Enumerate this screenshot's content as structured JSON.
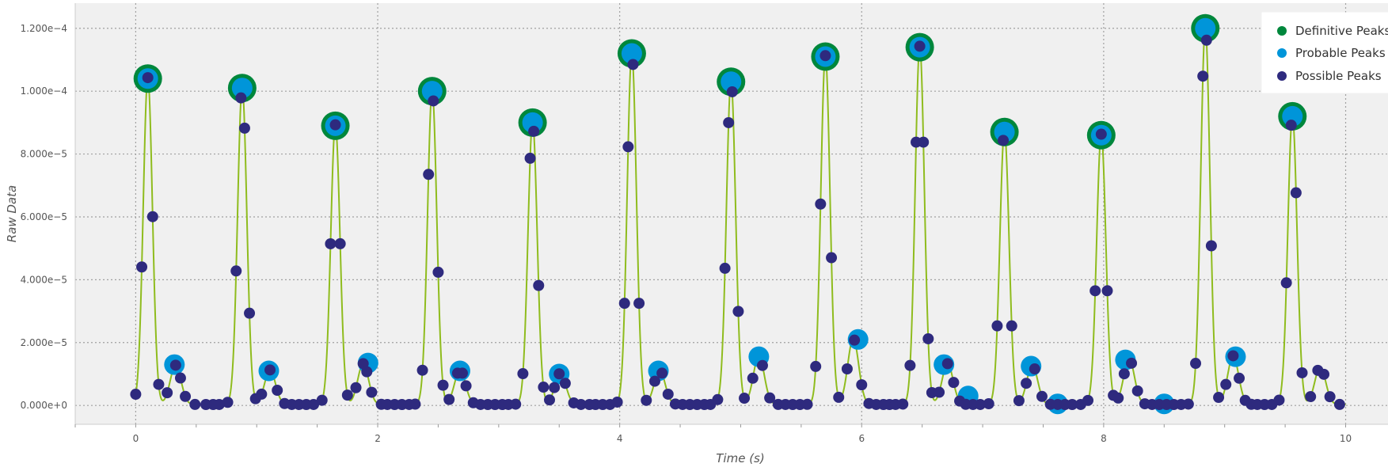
{
  "chart_data": {
    "type": "line",
    "xlabel": "Time (s)",
    "ylabel": "Raw Data",
    "xlim": [
      -0.5,
      10.35
    ],
    "ylim": [
      -6e-06,
      0.000128
    ],
    "x_ticks": [
      0,
      2,
      4,
      6,
      8,
      10
    ],
    "x_tick_labels": [
      "0",
      "2",
      "4",
      "6",
      "8",
      "10"
    ],
    "y_ticks": [
      0,
      2e-05,
      4e-05,
      6e-05,
      8e-05,
      0.0001,
      0.00012
    ],
    "y_tick_labels": [
      "0.000e+0",
      "2.000e−5",
      "4.000e−5",
      "6.000e−5",
      "8.000e−5",
      "1.000e−4",
      "1.200e−4"
    ],
    "grid": true,
    "legend_position": "top-right",
    "colors": {
      "signal": "#8fbc1e",
      "definitive": "#00873c",
      "probable": "#0095d9",
      "possible": "#2e2a7e",
      "plot_background": "#f0f0f0",
      "grid": "#a0a0a0"
    },
    "signal_series": {
      "name": "",
      "peaks": [
        {
          "t": 0.1,
          "amp": 0.000104,
          "sec": 1.25e-05
        },
        {
          "t": 0.88,
          "amp": 0.000101,
          "sec": 1.1e-05
        },
        {
          "t": 1.65,
          "amp": 8.9e-05,
          "sec": 1.3e-05
        },
        {
          "t": 2.45,
          "amp": 0.0001,
          "sec": 1.1e-05
        },
        {
          "t": 3.28,
          "amp": 9e-05,
          "sec": 1e-05
        },
        {
          "t": 4.1,
          "amp": 0.000112,
          "sec": 1.1e-05
        },
        {
          "t": 4.92,
          "amp": 0.000103,
          "sec": 1.55e-05
        },
        {
          "t": 5.7,
          "amp": 0.000111,
          "sec": 2.1e-05
        },
        {
          "t": 6.48,
          "amp": 0.000114,
          "sec": 1.3e-05
        },
        {
          "t": 7.18,
          "amp": 8.7e-05,
          "sec": 1.25e-05
        },
        {
          "t": 7.98,
          "amp": 8.6e-05,
          "sec": 1.45e-05
        },
        {
          "t": 8.84,
          "amp": 0.00012,
          "sec": 1.55e-05
        },
        {
          "t": 9.56,
          "amp": 9.2e-05,
          "sec": 1.2e-05
        }
      ]
    },
    "series": [
      {
        "name": "Definitive Peaks",
        "x": [
          0.1,
          0.88,
          1.65,
          2.45,
          3.28,
          4.1,
          4.92,
          5.7,
          6.48,
          7.18,
          7.98,
          8.84,
          9.56
        ],
        "y": [
          0.000104,
          0.000101,
          8.9e-05,
          0.0001,
          9e-05,
          0.000112,
          0.000103,
          0.000111,
          0.000114,
          8.7e-05,
          8.6e-05,
          0.00012,
          9.2e-05
        ]
      },
      {
        "name": "Probable Peaks",
        "x": [
          0.1,
          0.32,
          0.88,
          1.1,
          1.65,
          1.92,
          2.45,
          2.68,
          3.28,
          3.5,
          4.1,
          4.32,
          4.92,
          5.15,
          5.7,
          5.97,
          6.48,
          6.68,
          6.88,
          7.18,
          7.4,
          7.62,
          7.98,
          8.18,
          8.5,
          8.84,
          9.09,
          9.56
        ],
        "y": [
          0.000104,
          1.3e-05,
          0.000101,
          1.1e-05,
          8.9e-05,
          1.35e-05,
          0.0001,
          1.1e-05,
          9e-05,
          1e-05,
          0.000112,
          1.1e-05,
          0.000103,
          1.55e-05,
          0.000111,
          2.1e-05,
          0.000114,
          1.3e-05,
          3e-06,
          8.7e-05,
          1.25e-05,
          5e-07,
          8.6e-05,
          1.45e-05,
          5e-07,
          0.00012,
          1.55e-05,
          9.2e-05
        ]
      },
      {
        "name": "Possible Peaks",
        "x": [
          0.0,
          0.05,
          0.1,
          0.14,
          0.19,
          0.26,
          0.33,
          0.37,
          0.41,
          0.49,
          0.58,
          0.64,
          0.69,
          0.76,
          0.83,
          0.87,
          0.9,
          0.94,
          0.99,
          1.04,
          1.11,
          1.17,
          1.23,
          1.29,
          1.35,
          1.41,
          1.47,
          1.54,
          1.61,
          1.65,
          1.69,
          1.75,
          1.82,
          1.88,
          1.91,
          1.95,
          2.03,
          2.08,
          2.14,
          2.2,
          2.26,
          2.31,
          2.37,
          2.42,
          2.46,
          2.5,
          2.54,
          2.59,
          2.66,
          2.7,
          2.73,
          2.79,
          2.85,
          2.91,
          2.97,
          3.03,
          3.08,
          3.14,
          3.2,
          3.26,
          3.29,
          3.33,
          3.37,
          3.42,
          3.46,
          3.5,
          3.55,
          3.62,
          3.68,
          3.75,
          3.8,
          3.86,
          3.92,
          3.98,
          4.04,
          4.07,
          4.11,
          4.16,
          4.22,
          4.29,
          4.35,
          4.4,
          4.46,
          4.52,
          4.58,
          4.64,
          4.7,
          4.75,
          4.81,
          4.87,
          4.9,
          4.93,
          4.98,
          5.03,
          5.1,
          5.18,
          5.24,
          5.31,
          5.37,
          5.43,
          5.49,
          5.55,
          5.62,
          5.66,
          5.7,
          5.75,
          5.81,
          5.88,
          5.94,
          6.0,
          6.06,
          6.12,
          6.18,
          6.23,
          6.28,
          6.34,
          6.4,
          6.45,
          6.48,
          6.51,
          6.55,
          6.58,
          6.64,
          6.71,
          6.76,
          6.81,
          6.86,
          6.92,
          6.98,
          7.05,
          7.12,
          7.17,
          7.24,
          7.3,
          7.36,
          7.43,
          7.49,
          7.56,
          7.62,
          7.68,
          7.74,
          7.81,
          7.87,
          7.93,
          7.98,
          8.03,
          8.08,
          8.12,
          8.17,
          8.23,
          8.28,
          8.34,
          8.4,
          8.46,
          8.52,
          8.58,
          8.64,
          8.7,
          8.76,
          8.82,
          8.85,
          8.89,
          8.95,
          9.01,
          9.07,
          9.12,
          9.17,
          9.22,
          9.27,
          9.33,
          9.39,
          9.45,
          9.51,
          9.55,
          9.59,
          9.64,
          9.71,
          9.77,
          9.82,
          9.87,
          9.95
        ]
      }
    ],
    "legend_entries": [
      "Definitive Peaks",
      "Probable Peaks",
      "Possible Peaks"
    ]
  }
}
